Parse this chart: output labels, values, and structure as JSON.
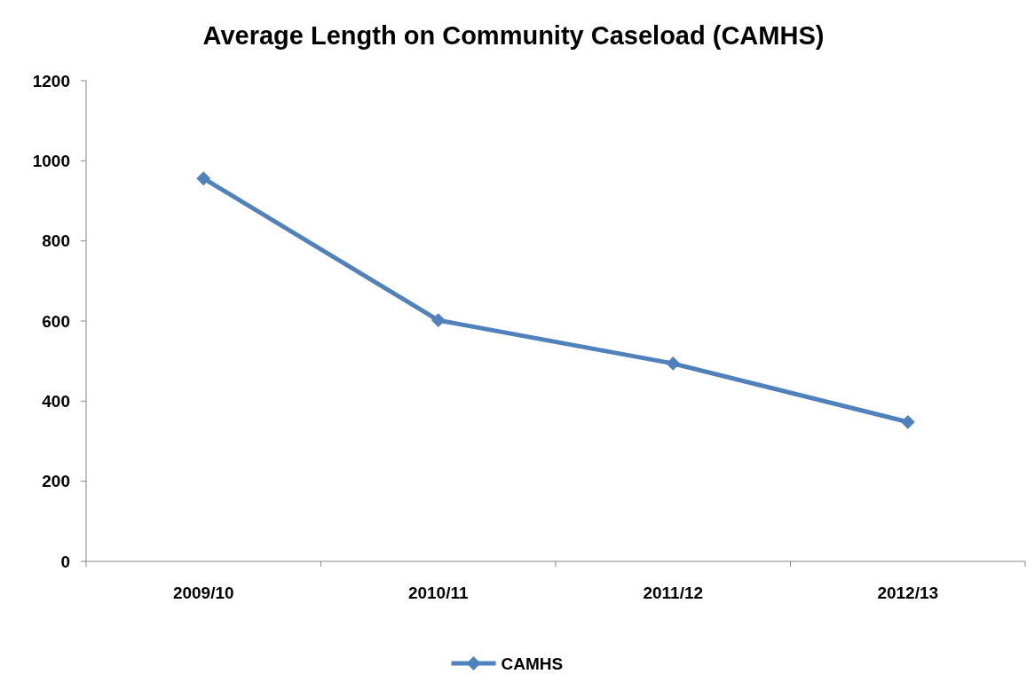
{
  "chart_data": {
    "type": "line",
    "title": "Average Length on Community Caseload (CAMHS)",
    "categories": [
      "2009/10",
      "2010/11",
      "2011/12",
      "2012/13"
    ],
    "series": [
      {
        "name": "CAMHS",
        "color": "#4f81bd",
        "values": [
          956,
          602,
          494,
          348
        ]
      }
    ],
    "ylim": [
      0,
      1200
    ],
    "yticks": [
      0,
      200,
      400,
      600,
      800,
      1000,
      1200
    ],
    "grid": false,
    "legend": "bottom",
    "marker": "diamond",
    "line_style": "solid"
  }
}
